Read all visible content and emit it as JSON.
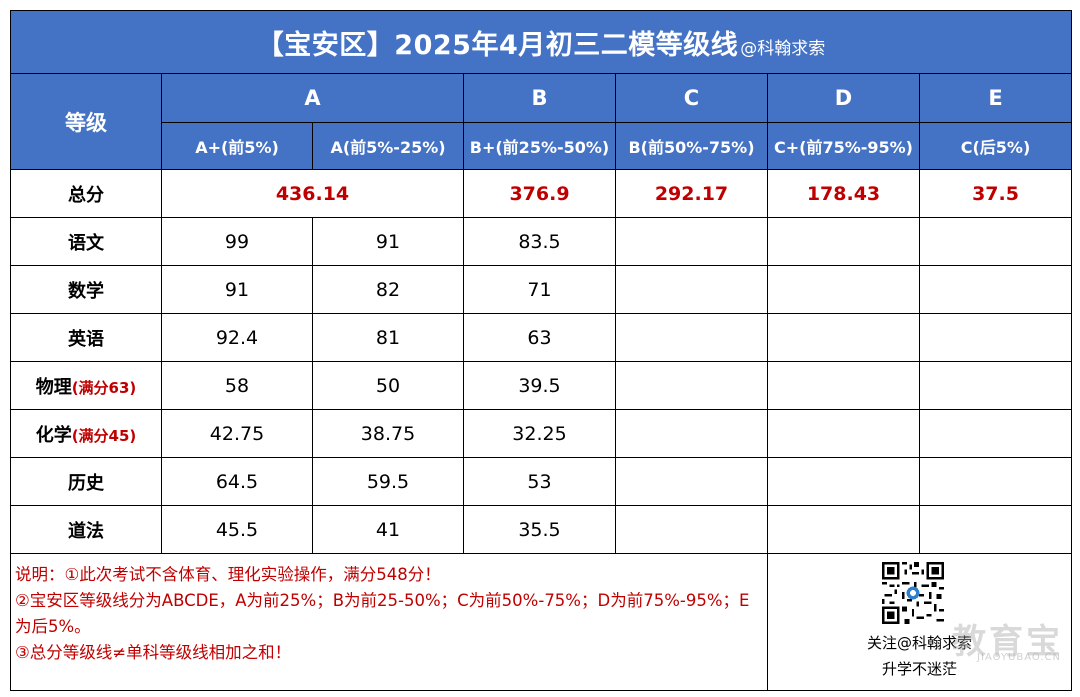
{
  "title": {
    "main": "【宝安区】2025年4月初三二模等级线",
    "suffix": "@科翰求索"
  },
  "header": {
    "grade_label": "等级",
    "groups": [
      "A",
      "B",
      "C",
      "D",
      "E"
    ],
    "subgroups": [
      "A+(前5%)",
      "A(前5%-25%)",
      "B+(前25%-50%)",
      "B(前50%-75%)",
      "C+(前75%-95%)",
      "C(后5%)"
    ]
  },
  "total": {
    "label": "总分",
    "values": [
      "436.14",
      "376.9",
      "292.17",
      "178.43",
      "37.5"
    ]
  },
  "subjects": [
    {
      "label": "语文",
      "note": "",
      "values": [
        "99",
        "91",
        "83.5"
      ]
    },
    {
      "label": "数学",
      "note": "",
      "values": [
        "91",
        "82",
        "71"
      ]
    },
    {
      "label": "英语",
      "note": "",
      "values": [
        "92.4",
        "81",
        "63"
      ]
    },
    {
      "label": "物理",
      "note": "(满分63)",
      "values": [
        "58",
        "50",
        "39.5"
      ]
    },
    {
      "label": "化学",
      "note": "(满分45)",
      "values": [
        "42.75",
        "38.75",
        "32.25"
      ]
    },
    {
      "label": "历史",
      "note": "",
      "values": [
        "64.5",
        "59.5",
        "53"
      ]
    },
    {
      "label": "道法",
      "note": "",
      "values": [
        "45.5",
        "41",
        "35.5"
      ]
    }
  ],
  "notes": [
    "说明：①此次考试不含体育、理化实验操作，满分548分！",
    "②宝安区等级线分为ABCDE，A为前25%；B为前25-50%；C为前50%-75%；D为前75%-95%；E为后5%。",
    "③总分等级线≠单科等级线相加之和！"
  ],
  "qr": {
    "caption1": "关注@科翰求索",
    "caption2": "升学不迷茫",
    "icon": "qr-code-icon"
  },
  "watermark": {
    "text": "教育宝",
    "url": "JIAOYUBAO.CN"
  },
  "colors": {
    "header_bg": "#4472c4",
    "header_text": "#ffffff",
    "accent_red": "#c00000"
  }
}
